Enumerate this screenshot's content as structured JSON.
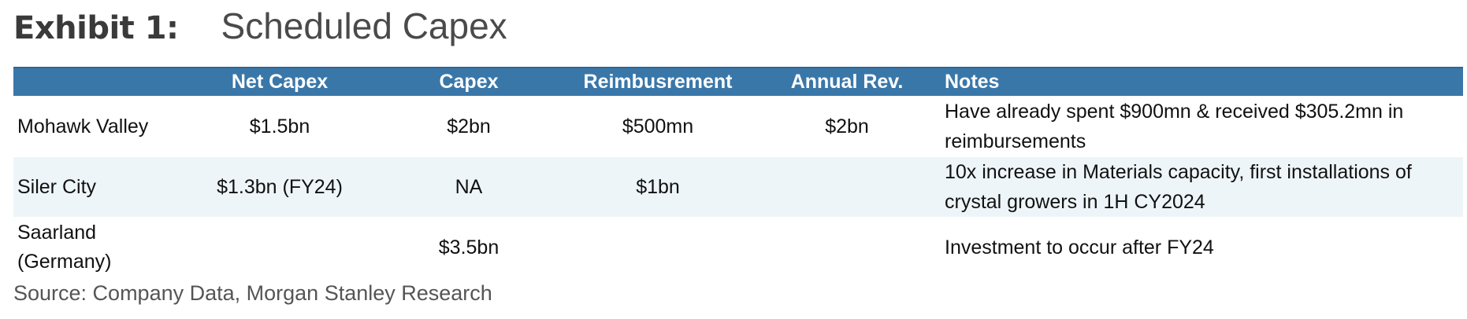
{
  "exhibit": {
    "label": "Exhibit 1:",
    "title": "Scheduled Capex"
  },
  "table": {
    "headers": [
      "",
      "Net Capex",
      "Capex",
      "Reimbusrement",
      "Annual Rev.",
      "Notes"
    ],
    "rows": [
      {
        "site": "Mohawk Valley",
        "net_capex": "$1.5bn",
        "capex": "$2bn",
        "reimbursement": "$500mn",
        "annual_rev": "$2bn",
        "notes": "Have already spent $900mn & received $305.2mn in reimbursements"
      },
      {
        "site": "Siler City",
        "net_capex": "$1.3bn (FY24)",
        "capex": "NA",
        "reimbursement": "$1bn",
        "annual_rev": "",
        "notes": "10x increase in Materials capacity, first installations of crystal growers in 1H CY2024"
      },
      {
        "site": "Saarland (Germany)",
        "net_capex": "",
        "capex": "$3.5bn",
        "reimbursement": "",
        "annual_rev": "",
        "notes": "Investment to occur after FY24"
      }
    ]
  },
  "source": "Source: Company Data, Morgan Stanley Research",
  "colors": {
    "header_bg": "#3a77a9",
    "header_text": "#ffffff",
    "alt_row_bg": "#eef5f8"
  }
}
